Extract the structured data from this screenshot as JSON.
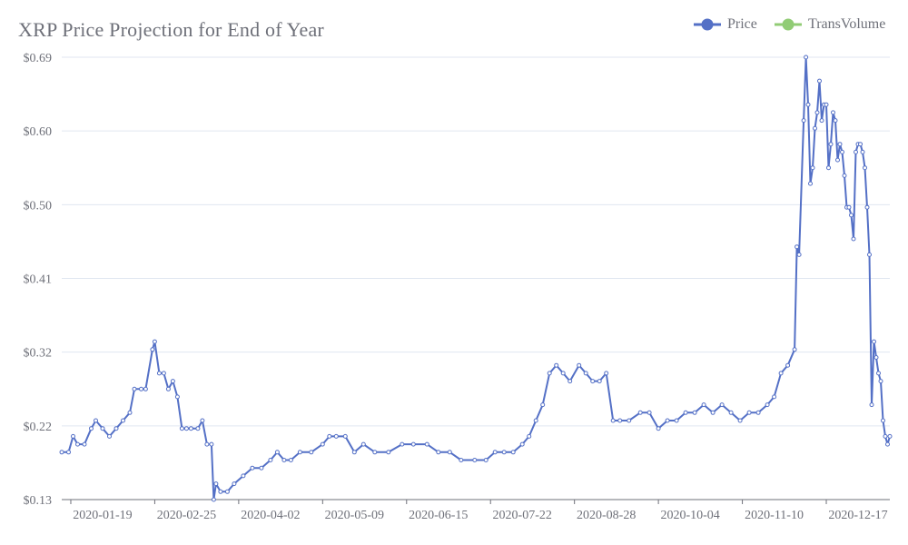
{
  "chart_data": {
    "type": "line",
    "title": "XRP Price Projection for End of Year",
    "legend": {
      "placement": "top-right",
      "entries": [
        "Price",
        "TransVolume"
      ]
    },
    "colors": {
      "Price": "#5470c6",
      "TransVolume": "#91cc75"
    },
    "ylim": [
      0.13,
      0.69
    ],
    "y_tick_labels": [
      "$0.13",
      "$0.22",
      "$0.32",
      "$0.41",
      "$0.50",
      "$0.60",
      "$0.69"
    ],
    "x_tick_labels": [
      "2020-01-19",
      "2020-02-25",
      "2020-04-02",
      "2020-05-09",
      "2020-06-15",
      "2020-07-22",
      "2020-08-28",
      "2020-10-04",
      "2020-11-10",
      "2020-12-17"
    ],
    "xlim": [
      "2020-01-01",
      "2020-12-31"
    ],
    "grid": true,
    "series": [
      {
        "name": "Price",
        "points": [
          [
            "2020-01-01",
            0.19
          ],
          [
            "2020-01-04",
            0.19
          ],
          [
            "2020-01-06",
            0.21
          ],
          [
            "2020-01-08",
            0.2
          ],
          [
            "2020-01-11",
            0.2
          ],
          [
            "2020-01-14",
            0.22
          ],
          [
            "2020-01-16",
            0.23
          ],
          [
            "2020-01-19",
            0.22
          ],
          [
            "2020-01-22",
            0.21
          ],
          [
            "2020-01-25",
            0.22
          ],
          [
            "2020-01-28",
            0.23
          ],
          [
            "2020-01-31",
            0.24
          ],
          [
            "2020-02-02",
            0.27
          ],
          [
            "2020-02-05",
            0.27
          ],
          [
            "2020-02-07",
            0.27
          ],
          [
            "2020-02-10",
            0.32
          ],
          [
            "2020-02-11",
            0.33
          ],
          [
            "2020-02-13",
            0.29
          ],
          [
            "2020-02-15",
            0.29
          ],
          [
            "2020-02-17",
            0.27
          ],
          [
            "2020-02-19",
            0.28
          ],
          [
            "2020-02-21",
            0.26
          ],
          [
            "2020-02-23",
            0.22
          ],
          [
            "2020-02-25",
            0.22
          ],
          [
            "2020-02-27",
            0.22
          ],
          [
            "2020-03-01",
            0.22
          ],
          [
            "2020-03-03",
            0.23
          ],
          [
            "2020-03-05",
            0.2
          ],
          [
            "2020-03-07",
            0.2
          ],
          [
            "2020-03-08",
            0.13
          ],
          [
            "2020-03-09",
            0.15
          ],
          [
            "2020-03-11",
            0.14
          ],
          [
            "2020-03-14",
            0.14
          ],
          [
            "2020-03-17",
            0.15
          ],
          [
            "2020-03-21",
            0.16
          ],
          [
            "2020-03-25",
            0.17
          ],
          [
            "2020-03-29",
            0.17
          ],
          [
            "2020-04-02",
            0.18
          ],
          [
            "2020-04-05",
            0.19
          ],
          [
            "2020-04-08",
            0.18
          ],
          [
            "2020-04-11",
            0.18
          ],
          [
            "2020-04-15",
            0.19
          ],
          [
            "2020-04-20",
            0.19
          ],
          [
            "2020-04-25",
            0.2
          ],
          [
            "2020-04-28",
            0.21
          ],
          [
            "2020-05-01",
            0.21
          ],
          [
            "2020-05-05",
            0.21
          ],
          [
            "2020-05-09",
            0.19
          ],
          [
            "2020-05-13",
            0.2
          ],
          [
            "2020-05-18",
            0.19
          ],
          [
            "2020-05-24",
            0.19
          ],
          [
            "2020-05-30",
            0.2
          ],
          [
            "2020-06-04",
            0.2
          ],
          [
            "2020-06-10",
            0.2
          ],
          [
            "2020-06-15",
            0.19
          ],
          [
            "2020-06-20",
            0.19
          ],
          [
            "2020-06-25",
            0.18
          ],
          [
            "2020-07-01",
            0.18
          ],
          [
            "2020-07-06",
            0.18
          ],
          [
            "2020-07-10",
            0.19
          ],
          [
            "2020-07-14",
            0.19
          ],
          [
            "2020-07-18",
            0.19
          ],
          [
            "2020-07-22",
            0.2
          ],
          [
            "2020-07-25",
            0.21
          ],
          [
            "2020-07-28",
            0.23
          ],
          [
            "2020-07-31",
            0.25
          ],
          [
            "2020-08-03",
            0.29
          ],
          [
            "2020-08-06",
            0.3
          ],
          [
            "2020-08-09",
            0.29
          ],
          [
            "2020-08-12",
            0.28
          ],
          [
            "2020-08-16",
            0.3
          ],
          [
            "2020-08-19",
            0.29
          ],
          [
            "2020-08-22",
            0.28
          ],
          [
            "2020-08-25",
            0.28
          ],
          [
            "2020-08-28",
            0.29
          ],
          [
            "2020-08-31",
            0.23
          ],
          [
            "2020-09-03",
            0.23
          ],
          [
            "2020-09-07",
            0.23
          ],
          [
            "2020-09-12",
            0.24
          ],
          [
            "2020-09-16",
            0.24
          ],
          [
            "2020-09-20",
            0.22
          ],
          [
            "2020-09-24",
            0.23
          ],
          [
            "2020-09-28",
            0.23
          ],
          [
            "2020-10-02",
            0.24
          ],
          [
            "2020-10-06",
            0.24
          ],
          [
            "2020-10-10",
            0.25
          ],
          [
            "2020-10-14",
            0.24
          ],
          [
            "2020-10-18",
            0.25
          ],
          [
            "2020-10-22",
            0.24
          ],
          [
            "2020-10-26",
            0.23
          ],
          [
            "2020-10-30",
            0.24
          ],
          [
            "2020-11-03",
            0.24
          ],
          [
            "2020-11-07",
            0.25
          ],
          [
            "2020-11-10",
            0.26
          ],
          [
            "2020-11-13",
            0.29
          ],
          [
            "2020-11-16",
            0.3
          ],
          [
            "2020-11-19",
            0.32
          ],
          [
            "2020-11-20",
            0.45
          ],
          [
            "2020-11-21",
            0.44
          ],
          [
            "2020-11-23",
            0.61
          ],
          [
            "2020-11-24",
            0.69
          ],
          [
            "2020-11-25",
            0.63
          ],
          [
            "2020-11-26",
            0.53
          ],
          [
            "2020-11-27",
            0.55
          ],
          [
            "2020-11-28",
            0.6
          ],
          [
            "2020-11-29",
            0.62
          ],
          [
            "2020-11-30",
            0.66
          ],
          [
            "2020-12-01",
            0.61
          ],
          [
            "2020-12-02",
            0.63
          ],
          [
            "2020-12-03",
            0.63
          ],
          [
            "2020-12-04",
            0.55
          ],
          [
            "2020-12-05",
            0.58
          ],
          [
            "2020-12-06",
            0.62
          ],
          [
            "2020-12-07",
            0.61
          ],
          [
            "2020-12-08",
            0.56
          ],
          [
            "2020-12-09",
            0.58
          ],
          [
            "2020-12-10",
            0.57
          ],
          [
            "2020-12-11",
            0.54
          ],
          [
            "2020-12-12",
            0.5
          ],
          [
            "2020-12-13",
            0.5
          ],
          [
            "2020-12-14",
            0.49
          ],
          [
            "2020-12-15",
            0.46
          ],
          [
            "2020-12-16",
            0.57
          ],
          [
            "2020-12-17",
            0.58
          ],
          [
            "2020-12-18",
            0.58
          ],
          [
            "2020-12-19",
            0.57
          ],
          [
            "2020-12-20",
            0.55
          ],
          [
            "2020-12-21",
            0.5
          ],
          [
            "2020-12-22",
            0.44
          ],
          [
            "2020-12-23",
            0.25
          ],
          [
            "2020-12-24",
            0.33
          ],
          [
            "2020-12-25",
            0.31
          ],
          [
            "2020-12-26",
            0.29
          ],
          [
            "2020-12-27",
            0.28
          ],
          [
            "2020-12-28",
            0.23
          ],
          [
            "2020-12-29",
            0.21
          ],
          [
            "2020-12-30",
            0.2
          ],
          [
            "2020-12-31",
            0.21
          ]
        ]
      },
      {
        "name": "TransVolume",
        "points": []
      }
    ]
  }
}
